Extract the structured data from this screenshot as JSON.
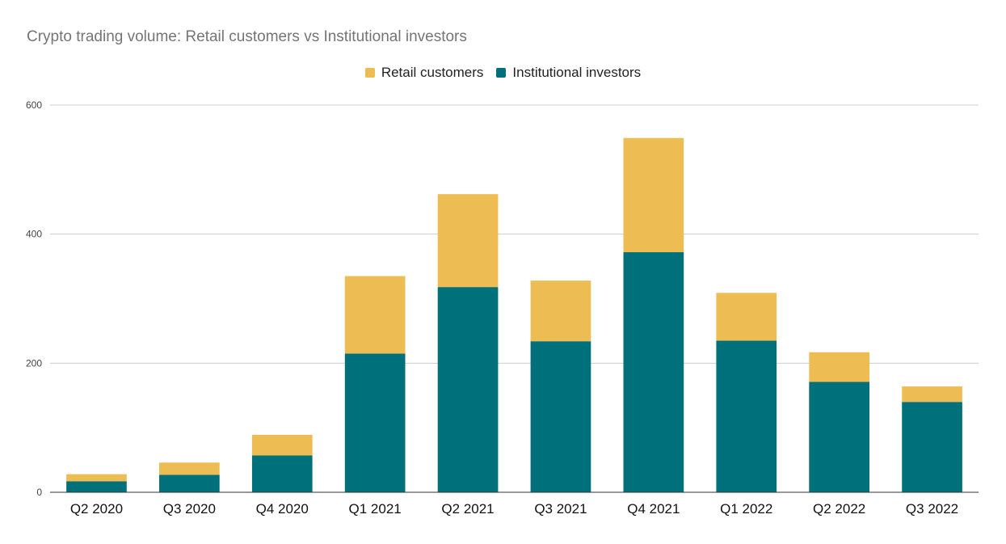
{
  "chart_data": {
    "type": "bar",
    "stacked": true,
    "title": "Crypto trading volume: Retail customers vs Institutional investors",
    "categories": [
      "Q2 2020",
      "Q3 2020",
      "Q4 2020",
      "Q1 2021",
      "Q2 2021",
      "Q3 2021",
      "Q4 2021",
      "Q1 2022",
      "Q2 2022",
      "Q3 2022"
    ],
    "series": [
      {
        "name": "Institutional investors",
        "color": "#00707a",
        "values": [
          17,
          27,
          57,
          215,
          318,
          234,
          372,
          235,
          171,
          140
        ]
      },
      {
        "name": "Retail customers",
        "color": "#edbd53",
        "values": [
          11,
          19,
          32,
          120,
          144,
          94,
          177,
          74,
          46,
          24
        ]
      }
    ],
    "legend": {
      "position": "top",
      "entries": [
        {
          "name": "Retail customers",
          "color": "#edbd53"
        },
        {
          "name": "Institutional investors",
          "color": "#00707a"
        }
      ]
    },
    "ylim": [
      0,
      600
    ],
    "yticks": [
      0,
      200,
      400,
      600
    ],
    "grid": true,
    "xlabel": "",
    "ylabel": ""
  }
}
